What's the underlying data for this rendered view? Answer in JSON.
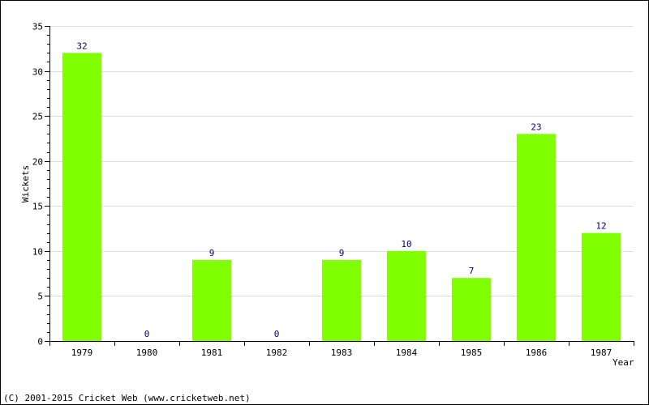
{
  "chart_data": {
    "type": "bar",
    "categories": [
      "1979",
      "1980",
      "1981",
      "1982",
      "1983",
      "1984",
      "1985",
      "1986",
      "1987"
    ],
    "values": [
      32,
      0,
      9,
      0,
      9,
      10,
      7,
      23,
      12
    ],
    "data_labels": [
      "32",
      "0",
      "9",
      "0",
      "9",
      "10",
      "7",
      "23",
      "12"
    ],
    "xlabel": "Year",
    "ylabel": "Wickets",
    "ylim": [
      0,
      35
    ],
    "yticks": [
      0,
      5,
      10,
      15,
      20,
      25,
      30,
      35
    ],
    "grid": true,
    "bar_color": "#80ff00",
    "label_color": "#000080",
    "grid_color": "#dddddd"
  },
  "footer": {
    "copyright": "(C) 2001-2015 Cricket Web (www.cricketweb.net)"
  }
}
